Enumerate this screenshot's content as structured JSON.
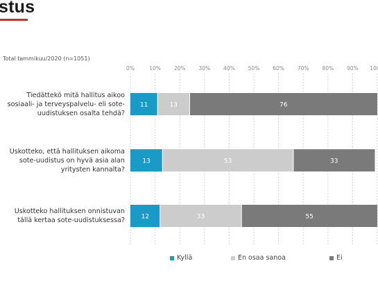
{
  "header": {
    "title": "stus"
  },
  "chart_data": {
    "type": "bar",
    "stacked": true,
    "orientation": "horizontal",
    "subtitle": "Total tammikuu/2020 (n=1051)",
    "categories": [
      [
        "Tiedättekö mitä hallitus aikoo",
        "sosiaali- ja terveyspalvelu- eli sote-",
        "uudistuksen osalta tehdä?"
      ],
      [
        "Uskotteko, että hallituksen aikoma",
        "sote-uudistus on hyvä asia alan",
        "yritysten kannalta?"
      ],
      [
        "Uskotteko hallituksen onnistuvan",
        "tällä kertaa sote-uudistuksessa?"
      ]
    ],
    "series": [
      {
        "name": "Kyllä",
        "color": "#1a9bc7",
        "values": [
          11,
          13,
          12
        ]
      },
      {
        "name": "En osaa sanoa",
        "color": "#cccccc",
        "values": [
          13,
          53,
          33
        ]
      },
      {
        "name": "Ei",
        "color": "#7a7a7a",
        "values": [
          76,
          33,
          55
        ]
      }
    ],
    "xticks": [
      "0%",
      "10%",
      "20%",
      "30%",
      "40%",
      "50%",
      "60%",
      "70%",
      "80%",
      "90%",
      "100%"
    ],
    "xlim": [
      0,
      100
    ],
    "grid": true,
    "legend": "bottom"
  }
}
